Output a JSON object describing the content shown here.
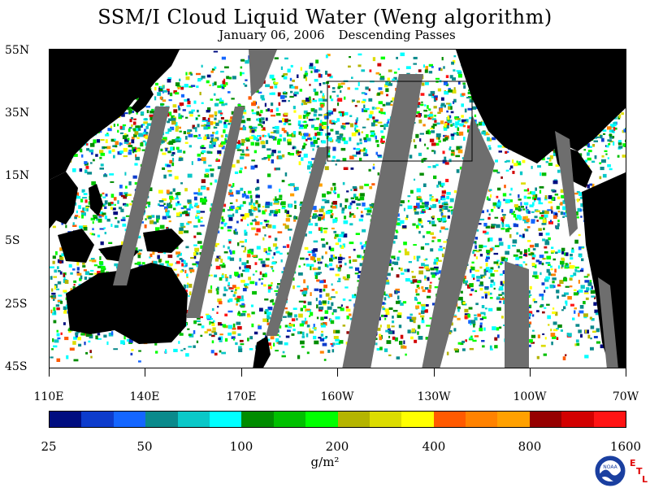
{
  "title": "SSM/I Cloud Liquid Water (Weng algorithm)",
  "subtitle_date": "January 06, 2006",
  "subtitle_passes": "Descending Passes",
  "y_axis_labels": [
    "55N",
    "35N",
    "15N",
    "5S",
    "25S",
    "45S"
  ],
  "x_axis_labels": [
    "110E",
    "140E",
    "170E",
    "160W",
    "130W",
    "100W",
    "70W"
  ],
  "colorbar": {
    "colors": [
      "#000d80",
      "#0d3ccc",
      "#1466ff",
      "#0a8a8c",
      "#0ac8c8",
      "#00ffff",
      "#008c00",
      "#00c000",
      "#00ff00",
      "#b4b400",
      "#dcdc00",
      "#ffff00",
      "#ff5a00",
      "#ff8200",
      "#ffa000",
      "#960000",
      "#d20000",
      "#ff1414"
    ],
    "tick_labels": [
      "25",
      "50",
      "100",
      "200",
      "400",
      "800",
      "1600"
    ]
  },
  "units": "g/m²",
  "logo_text": "NOAA",
  "logo_letters": [
    "E",
    "T",
    "L"
  ],
  "colors": {
    "land": "#000000",
    "no_data": "#6e6e6e",
    "clear_ocean": "#ffffff"
  }
}
